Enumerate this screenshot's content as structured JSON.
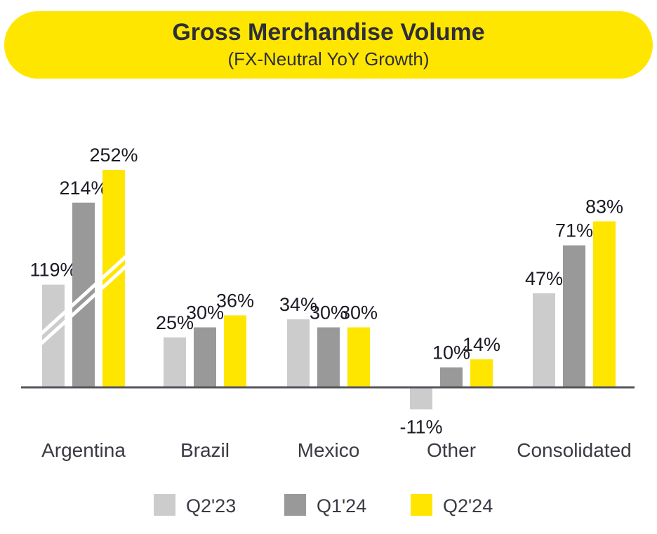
{
  "chart_data": {
    "type": "bar",
    "title": "Gross Merchandise Volume",
    "subtitle": "(FX-Neutral YoY Growth)",
    "categories": [
      "Argentina",
      "Brazil",
      "Mexico",
      "Other",
      "Consolidated"
    ],
    "series": [
      {
        "name": "Q2'23",
        "color": "#cccccc",
        "values": [
          119,
          25,
          34,
          -11,
          47
        ]
      },
      {
        "name": "Q1'24",
        "color": "#999999",
        "values": [
          214,
          30,
          30,
          10,
          71
        ]
      },
      {
        "name": "Q2'24",
        "color": "#ffe600",
        "values": [
          252,
          36,
          30,
          14,
          83
        ]
      }
    ],
    "data_labels": [
      [
        "119%",
        "214%",
        "252%"
      ],
      [
        "25%",
        "30%",
        "36%"
      ],
      [
        "34%",
        "30%",
        "30%"
      ],
      [
        "-11%",
        "10%",
        "14%"
      ],
      [
        "47%",
        "71%",
        "83%"
      ]
    ],
    "broken_axis_category": "Argentina",
    "legend_position": "bottom"
  }
}
